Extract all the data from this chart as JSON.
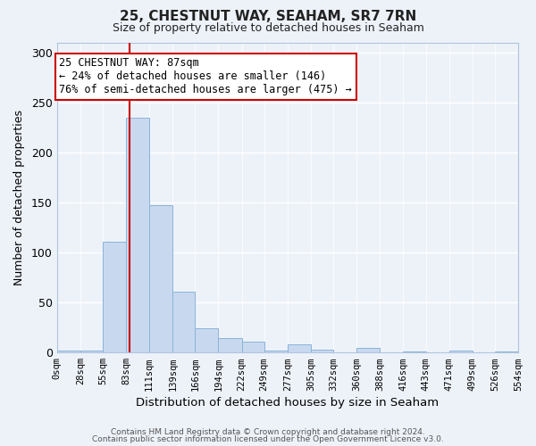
{
  "title": "25, CHESTNUT WAY, SEAHAM, SR7 7RN",
  "subtitle": "Size of property relative to detached houses in Seaham",
  "xlabel": "Distribution of detached houses by size in Seaham",
  "ylabel": "Number of detached properties",
  "bin_edges": [
    0,
    28,
    55,
    83,
    111,
    139,
    166,
    194,
    222,
    249,
    277,
    305,
    332,
    360,
    388,
    416,
    443,
    471,
    499,
    526,
    554
  ],
  "bin_counts": [
    2,
    2,
    111,
    235,
    147,
    61,
    24,
    14,
    11,
    2,
    8,
    3,
    0,
    5,
    0,
    1,
    0,
    2,
    0,
    1
  ],
  "tick_labels": [
    "0sqm",
    "28sqm",
    "55sqm",
    "83sqm",
    "111sqm",
    "139sqm",
    "166sqm",
    "194sqm",
    "222sqm",
    "249sqm",
    "277sqm",
    "305sqm",
    "332sqm",
    "360sqm",
    "388sqm",
    "416sqm",
    "443sqm",
    "471sqm",
    "499sqm",
    "526sqm",
    "554sqm"
  ],
  "bar_color": "#c8d9ef",
  "bar_edge_color": "#8ab4d8",
  "property_line_x": 87,
  "property_line_color": "#cc0000",
  "annotation_title": "25 CHESTNUT WAY: 87sqm",
  "annotation_line1": "← 24% of detached houses are smaller (146)",
  "annotation_line2": "76% of semi-detached houses are larger (475) →",
  "annotation_box_color": "white",
  "annotation_box_edge_color": "#cc0000",
  "ylim": [
    0,
    310
  ],
  "yticks": [
    0,
    50,
    100,
    150,
    200,
    250,
    300
  ],
  "footer1": "Contains HM Land Registry data © Crown copyright and database right 2024.",
  "footer2": "Contains public sector information licensed under the Open Government Licence v3.0.",
  "background_color": "#edf2f9",
  "plot_bg_color": "#edf2f9",
  "grid_color": "#ffffff"
}
